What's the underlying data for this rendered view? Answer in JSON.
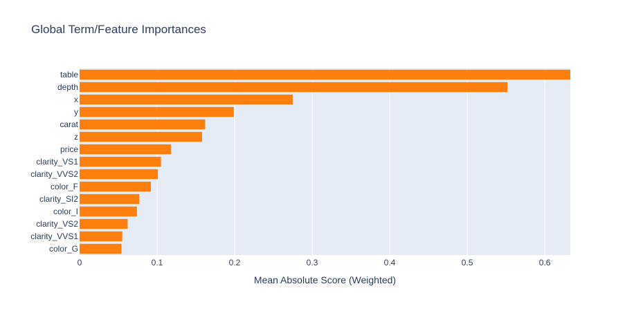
{
  "chart_data": {
    "type": "bar",
    "orientation": "horizontal",
    "title": "Global Term/Feature Importances",
    "xlabel": "Mean Absolute Score (Weighted)",
    "ylabel": "",
    "xlim": [
      0,
      0.633
    ],
    "xticks": [
      0,
      0.1,
      0.2,
      0.3,
      0.4,
      0.5,
      0.6
    ],
    "xtick_labels": [
      "0",
      "0.1",
      "0.2",
      "0.3",
      "0.4",
      "0.5",
      "0.6"
    ],
    "grid": true,
    "categories": [
      "table",
      "depth",
      "x",
      "y",
      "carat",
      "z",
      "price",
      "clarity_VS1",
      "clarity_VVS2",
      "color_F",
      "clarity_SI2",
      "color_I",
      "clarity_VS2",
      "clarity_VVS1",
      "color_G"
    ],
    "values": [
      0.633,
      0.552,
      0.275,
      0.199,
      0.162,
      0.158,
      0.118,
      0.105,
      0.101,
      0.092,
      0.077,
      0.074,
      0.062,
      0.055,
      0.054
    ],
    "colors": {
      "bar": "#ff7f0e",
      "plot_bg": "#e5ecf6",
      "grid": "#ffffff",
      "text": "#2a3f5f"
    }
  }
}
